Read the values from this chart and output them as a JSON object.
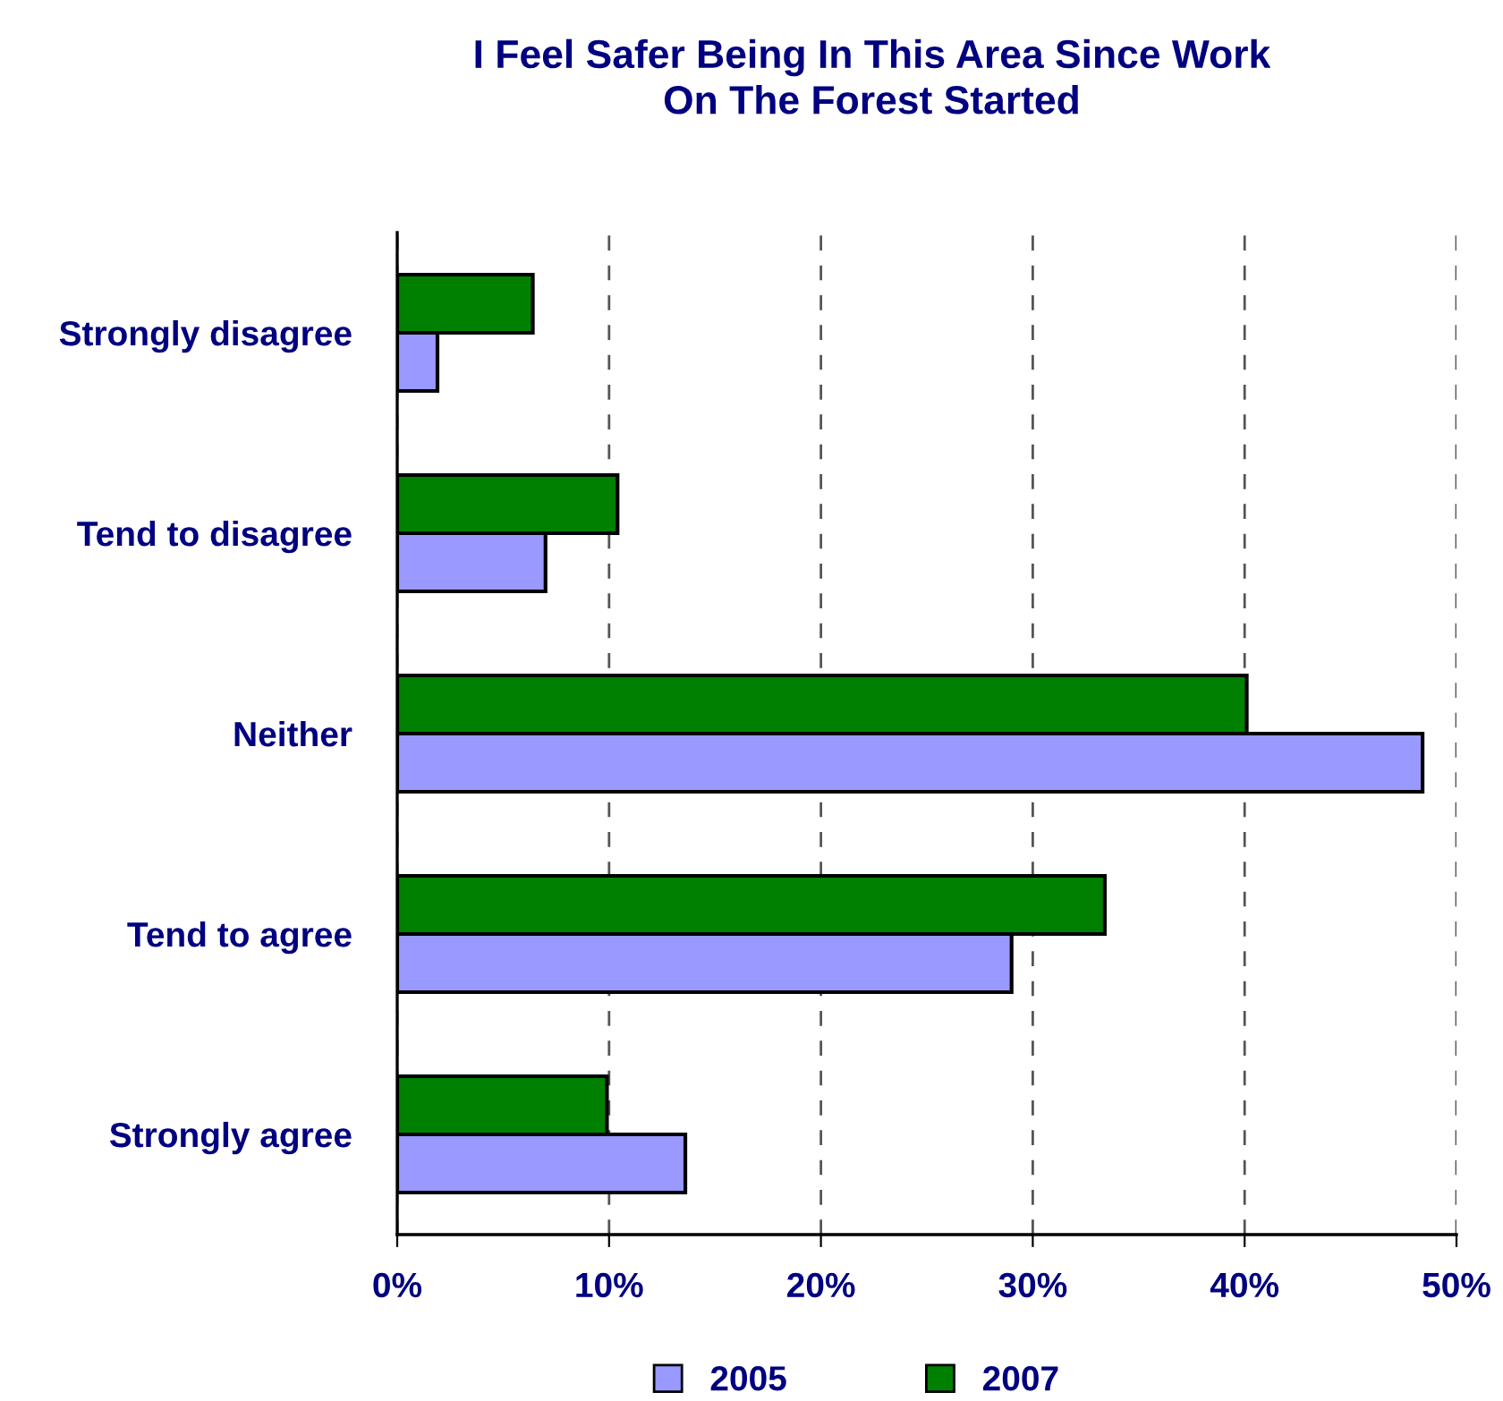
{
  "chart_data": {
    "type": "bar",
    "orientation": "horizontal",
    "title": "I Feel Safer Being In This Area Since Work\nOn The Forest Started",
    "categories": [
      "Strongly disagree",
      "Tend to disagree",
      "Neither",
      "Tend to agree",
      "Strongly agree"
    ],
    "series": [
      {
        "name": "2005",
        "color": "#9999ff",
        "values": [
          1.9,
          7.0,
          48.4,
          29.0,
          13.6
        ]
      },
      {
        "name": "2007",
        "color": "#008000",
        "values": [
          6.4,
          10.4,
          40.1,
          33.4,
          9.9
        ]
      }
    ],
    "xlim": [
      0,
      50
    ],
    "xticks": [
      {
        "value": 0,
        "label": "0%"
      },
      {
        "value": 10,
        "label": "10%"
      },
      {
        "value": 20,
        "label": "20%"
      },
      {
        "value": 30,
        "label": "30%"
      },
      {
        "value": 40,
        "label": "40%"
      },
      {
        "value": 50,
        "label": "50%"
      }
    ],
    "grid": "x",
    "line_style": "dashed",
    "legend": "bottom"
  }
}
